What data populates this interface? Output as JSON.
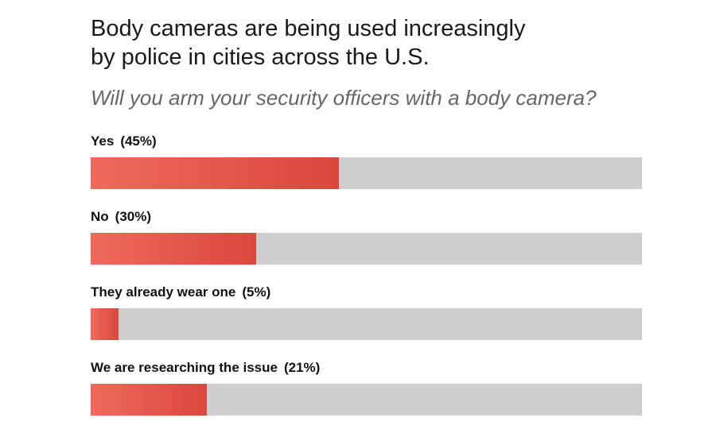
{
  "title_line1": "Body cameras are being used increasingly",
  "title_line2": "by police in cities across the U.S.",
  "question": "Will you arm your security officers with a body camera?",
  "colors": {
    "fill_start": "#ef6a5c",
    "fill_end": "#d9483c",
    "track": "#cfcdcd"
  },
  "chart_data": {
    "type": "bar",
    "orientation": "horizontal",
    "title": "Body cameras are being used increasingly by police in cities across the U.S.",
    "subtitle": "Will you arm your security officers with a body camera?",
    "categories": [
      "Yes",
      "No",
      "They already wear one",
      "We are researching the issue"
    ],
    "values": [
      45,
      30,
      5,
      21
    ],
    "value_labels": [
      "(45%)",
      "(30%)",
      "(5%)",
      "(21%)"
    ],
    "xlim": [
      0,
      100
    ],
    "grid": false,
    "legend": "none"
  }
}
